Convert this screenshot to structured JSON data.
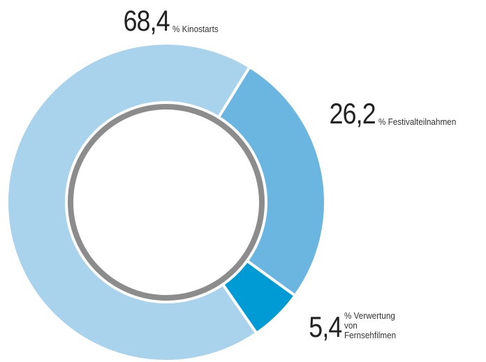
{
  "chart_data": {
    "type": "donut",
    "categories": [
      "% Kinostarts",
      "% Festivalteilnahmen",
      "% Verwertung von Fernsehfilmen"
    ],
    "values": [
      68.4,
      26.2,
      5.4
    ],
    "value_labels": [
      "68,4",
      "26,2",
      "5,4"
    ],
    "colors": [
      "#a9d2ec",
      "#6bb6e0",
      "#009bd5"
    ]
  }
}
